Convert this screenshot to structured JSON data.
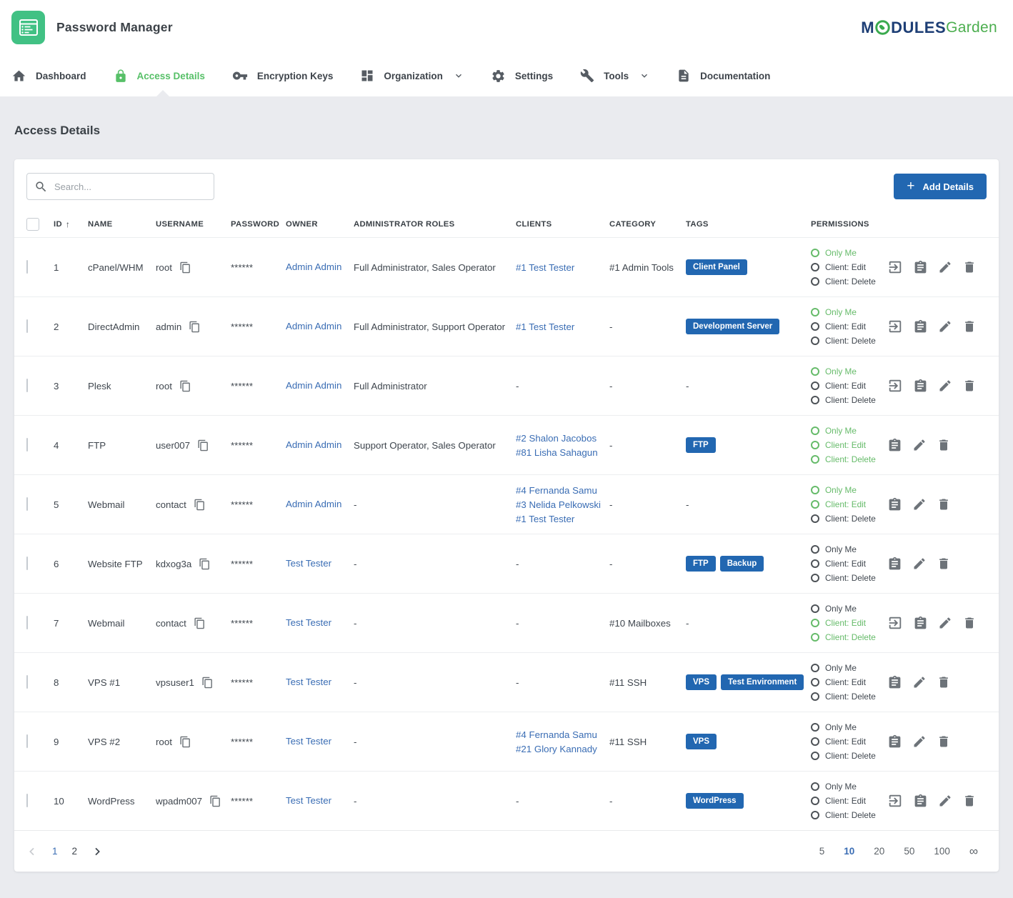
{
  "header": {
    "title": "Password Manager",
    "logo": {
      "part1": "M",
      "part2": "DULES",
      "part3": "Garden"
    }
  },
  "nav": {
    "items": [
      {
        "label": "Dashboard",
        "icon": "home-icon",
        "active": false,
        "dropdown": false
      },
      {
        "label": "Access Details",
        "icon": "lock-icon",
        "active": true,
        "dropdown": false
      },
      {
        "label": "Encryption Keys",
        "icon": "key-icon",
        "active": false,
        "dropdown": false
      },
      {
        "label": "Organization",
        "icon": "grid-icon",
        "active": false,
        "dropdown": true
      },
      {
        "label": "Settings",
        "icon": "gear-icon",
        "active": false,
        "dropdown": false
      },
      {
        "label": "Tools",
        "icon": "wrench-icon",
        "active": false,
        "dropdown": true
      },
      {
        "label": "Documentation",
        "icon": "document-icon",
        "active": false,
        "dropdown": false
      }
    ]
  },
  "page": {
    "title": "Access Details"
  },
  "toolbar": {
    "search_placeholder": "Search...",
    "add_button": "Add Details"
  },
  "table": {
    "columns": {
      "id": "ID",
      "name": "NAME",
      "username": "USERNAME",
      "password": "PASSWORD",
      "owner": "OWNER",
      "roles": "ADMINISTRATOR ROLES",
      "clients": "CLIENTS",
      "category": "CATEGORY",
      "tags": "TAGS",
      "permissions": "PERMISSIONS"
    },
    "sort_arrow": "↑",
    "permission_labels": [
      "Only Me",
      "Client: Edit",
      "Client: Delete"
    ],
    "empty_value": "-",
    "rows": [
      {
        "id": "1",
        "name": "cPanel/WHM",
        "username": "root",
        "password": "******",
        "owner": "Admin Admin",
        "roles": "Full Administrator, Sales Operator",
        "clients": [
          "#1 Test Tester"
        ],
        "category": "#1 Admin Tools",
        "tags": [
          "Client Panel"
        ],
        "permissions": {
          "only_me": true,
          "client_edit": false,
          "client_delete": false
        },
        "has_login_action": true
      },
      {
        "id": "2",
        "name": "DirectAdmin",
        "username": "admin",
        "password": "******",
        "owner": "Admin Admin",
        "roles": "Full Administrator, Support Operator",
        "clients": [
          "#1 Test Tester"
        ],
        "category": "-",
        "tags": [
          "Development Server"
        ],
        "permissions": {
          "only_me": true,
          "client_edit": false,
          "client_delete": false
        },
        "has_login_action": true
      },
      {
        "id": "3",
        "name": "Plesk",
        "username": "root",
        "password": "******",
        "owner": "Admin Admin",
        "roles": "Full Administrator",
        "clients": [],
        "category": "-",
        "tags": [],
        "permissions": {
          "only_me": true,
          "client_edit": false,
          "client_delete": false
        },
        "has_login_action": true
      },
      {
        "id": "4",
        "name": "FTP",
        "username": "user007",
        "password": "******",
        "owner": "Admin Admin",
        "roles": "Support Operator, Sales Operator",
        "clients": [
          "#2 Shalon Jacobos",
          "#81 Lisha Sahagun"
        ],
        "category": "-",
        "tags": [
          "FTP"
        ],
        "permissions": {
          "only_me": true,
          "client_edit": true,
          "client_delete": true
        },
        "has_login_action": false
      },
      {
        "id": "5",
        "name": "Webmail",
        "username": "contact",
        "password": "******",
        "owner": "Admin Admin",
        "roles": "-",
        "clients": [
          "#4 Fernanda Samu",
          "#3 Nelida Pelkowski",
          "#1 Test Tester"
        ],
        "category": "-",
        "tags": [],
        "permissions": {
          "only_me": true,
          "client_edit": true,
          "client_delete": false
        },
        "has_login_action": false
      },
      {
        "id": "6",
        "name": "Website FTP",
        "username": "kdxog3a",
        "password": "******",
        "owner": "Test Tester",
        "roles": "-",
        "clients": [],
        "category": "-",
        "tags": [
          "FTP",
          "Backup"
        ],
        "permissions": {
          "only_me": false,
          "client_edit": false,
          "client_delete": false
        },
        "has_login_action": false
      },
      {
        "id": "7",
        "name": "Webmail",
        "username": "contact",
        "password": "******",
        "owner": "Test Tester",
        "roles": "-",
        "clients": [],
        "category": "#10 Mailboxes",
        "tags": [],
        "permissions": {
          "only_me": false,
          "client_edit": true,
          "client_delete": true
        },
        "has_login_action": true
      },
      {
        "id": "8",
        "name": "VPS #1",
        "username": "vpsuser1",
        "password": "******",
        "owner": "Test Tester",
        "roles": "-",
        "clients": [],
        "category": "#11 SSH",
        "tags": [
          "VPS",
          "Test Environment"
        ],
        "permissions": {
          "only_me": false,
          "client_edit": false,
          "client_delete": false
        },
        "has_login_action": false
      },
      {
        "id": "9",
        "name": "VPS #2",
        "username": "root",
        "password": "******",
        "owner": "Test Tester",
        "roles": "-",
        "clients": [
          "#4 Fernanda Samu",
          "#21 Glory Kannady"
        ],
        "category": "#11 SSH",
        "tags": [
          "VPS"
        ],
        "permissions": {
          "only_me": false,
          "client_edit": false,
          "client_delete": false
        },
        "has_login_action": false
      },
      {
        "id": "10",
        "name": "WordPress",
        "username": "wpadm007",
        "password": "******",
        "owner": "Test Tester",
        "roles": "-",
        "clients": [],
        "category": "-",
        "tags": [
          "WordPress"
        ],
        "permissions": {
          "only_me": false,
          "client_edit": false,
          "client_delete": false
        },
        "has_login_action": true
      }
    ]
  },
  "pagination": {
    "pages": [
      "1",
      "2"
    ],
    "current_page": "1",
    "page_sizes": [
      "5",
      "10",
      "20",
      "50",
      "100",
      "∞"
    ],
    "current_size": "10"
  },
  "colors": {
    "accent_green": "#41c184",
    "nav_active_green": "#57c068",
    "permission_green": "#66bb6a",
    "link_blue": "#3a6db4",
    "badge_blue": "#2267b1",
    "logo_navy": "#1d3e75",
    "logo_green": "#4cae4f"
  }
}
